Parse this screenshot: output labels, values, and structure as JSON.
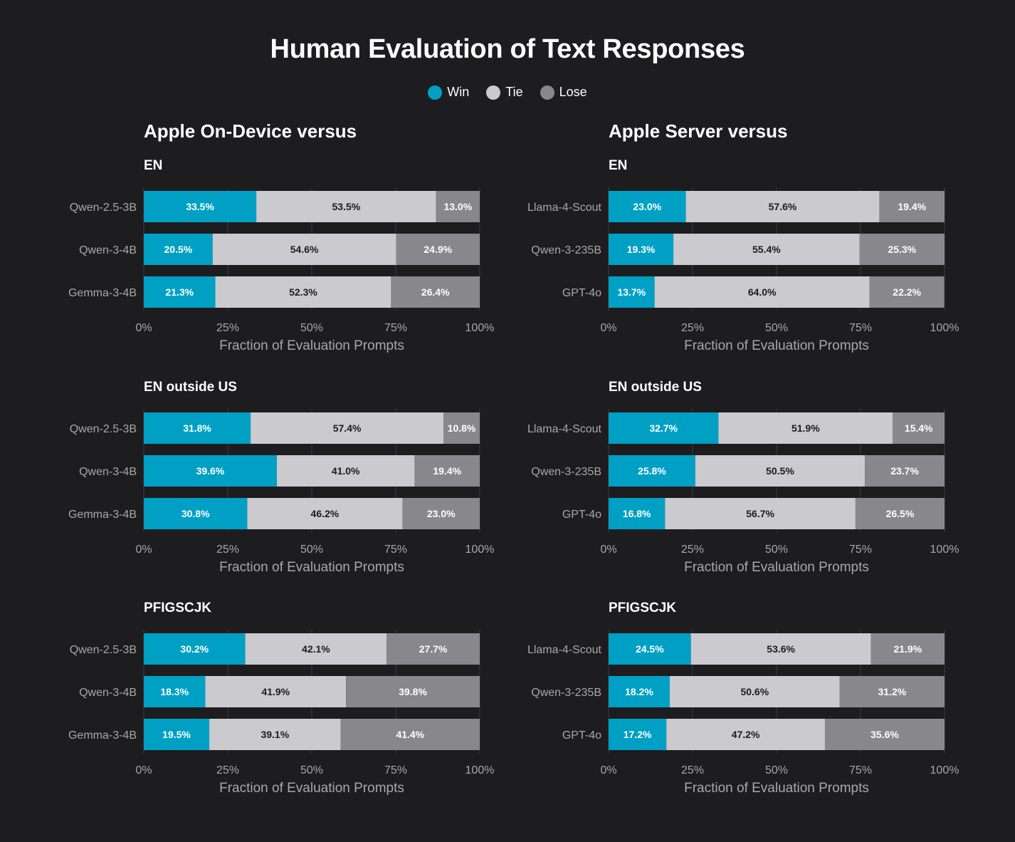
{
  "title": "Human Evaluation of Text Responses",
  "legend": [
    {
      "label": "Win",
      "color": "#00a0c4"
    },
    {
      "label": "Tie",
      "color": "#cacacf"
    },
    {
      "label": "Lose",
      "color": "#88878c"
    }
  ],
  "colors": {
    "win": "#00a0c4",
    "tie": "#cacacf",
    "lose": "#88878c",
    "win_text": "#ffffff",
    "tie_text": "#1d1c1f",
    "lose_text": "#ffffff",
    "grid": "#3e3d42",
    "background": "#1d1c1f"
  },
  "columns": [
    {
      "title": "Apple On-Device versus"
    },
    {
      "title": "Apple Server versus"
    }
  ],
  "chart_data": [
    {
      "type": "bar",
      "stacked": true,
      "orientation": "horizontal",
      "column": 0,
      "row": 0,
      "title": "EN",
      "categories": [
        "Qwen-2.5-3B",
        "Qwen-3-4B",
        "Gemma-3-4B"
      ],
      "series": [
        {
          "name": "Win",
          "values": [
            33.5,
            20.5,
            21.3
          ]
        },
        {
          "name": "Tie",
          "values": [
            53.5,
            54.6,
            52.3
          ]
        },
        {
          "name": "Lose",
          "values": [
            13.0,
            24.9,
            26.4
          ]
        }
      ],
      "value_labels": [
        [
          "33.5%",
          "53.5%",
          "13.0%"
        ],
        [
          "20.5%",
          "54.6%",
          "24.9%"
        ],
        [
          "21.3%",
          "52.3%",
          "26.4%"
        ]
      ],
      "xlim": [
        0,
        100
      ],
      "xticks": [
        "0%",
        "25%",
        "50%",
        "75%",
        "100%"
      ],
      "xlabel": "Fraction of Evaluation Prompts",
      "grid": true
    },
    {
      "type": "bar",
      "stacked": true,
      "orientation": "horizontal",
      "column": 1,
      "row": 0,
      "title": "EN",
      "categories": [
        "Llama-4-Scout",
        "Qwen-3-235B",
        "GPT-4o"
      ],
      "series": [
        {
          "name": "Win",
          "values": [
            23.0,
            19.3,
            13.7
          ]
        },
        {
          "name": "Tie",
          "values": [
            57.6,
            55.4,
            64.0
          ]
        },
        {
          "name": "Lose",
          "values": [
            19.4,
            25.3,
            22.2
          ]
        }
      ],
      "value_labels": [
        [
          "23.0%",
          "57.6%",
          "19.4%"
        ],
        [
          "19.3%",
          "55.4%",
          "25.3%"
        ],
        [
          "13.7%",
          "64.0%",
          "22.2%"
        ]
      ],
      "xlim": [
        0,
        100
      ],
      "xticks": [
        "0%",
        "25%",
        "50%",
        "75%",
        "100%"
      ],
      "xlabel": "Fraction of Evaluation Prompts",
      "grid": true
    },
    {
      "type": "bar",
      "stacked": true,
      "orientation": "horizontal",
      "column": 0,
      "row": 1,
      "title": "EN outside US",
      "categories": [
        "Qwen-2.5-3B",
        "Qwen-3-4B",
        "Gemma-3-4B"
      ],
      "series": [
        {
          "name": "Win",
          "values": [
            31.8,
            39.6,
            30.8
          ]
        },
        {
          "name": "Tie",
          "values": [
            57.4,
            41.0,
            46.2
          ]
        },
        {
          "name": "Lose",
          "values": [
            10.8,
            19.4,
            23.0
          ]
        }
      ],
      "value_labels": [
        [
          "31.8%",
          "57.4%",
          "10.8%"
        ],
        [
          "39.6%",
          "41.0%",
          "19.4%"
        ],
        [
          "30.8%",
          "46.2%",
          "23.0%"
        ]
      ],
      "xlim": [
        0,
        100
      ],
      "xticks": [
        "0%",
        "25%",
        "50%",
        "75%",
        "100%"
      ],
      "xlabel": "Fraction of Evaluation Prompts",
      "grid": true
    },
    {
      "type": "bar",
      "stacked": true,
      "orientation": "horizontal",
      "column": 1,
      "row": 1,
      "title": "EN outside US",
      "categories": [
        "Llama-4-Scout",
        "Qwen-3-235B",
        "GPT-4o"
      ],
      "series": [
        {
          "name": "Win",
          "values": [
            32.7,
            25.8,
            16.8
          ]
        },
        {
          "name": "Tie",
          "values": [
            51.9,
            50.5,
            56.7
          ]
        },
        {
          "name": "Lose",
          "values": [
            15.4,
            23.7,
            26.5
          ]
        }
      ],
      "value_labels": [
        [
          "32.7%",
          "51.9%",
          "15.4%"
        ],
        [
          "25.8%",
          "50.5%",
          "23.7%"
        ],
        [
          "16.8%",
          "56.7%",
          "26.5%"
        ]
      ],
      "xlim": [
        0,
        100
      ],
      "xticks": [
        "0%",
        "25%",
        "50%",
        "75%",
        "100%"
      ],
      "xlabel": "Fraction of Evaluation Prompts",
      "grid": true
    },
    {
      "type": "bar",
      "stacked": true,
      "orientation": "horizontal",
      "column": 0,
      "row": 2,
      "title": "PFIGSCJK",
      "categories": [
        "Qwen-2.5-3B",
        "Qwen-3-4B",
        "Gemma-3-4B"
      ],
      "series": [
        {
          "name": "Win",
          "values": [
            30.2,
            18.3,
            19.5
          ]
        },
        {
          "name": "Tie",
          "values": [
            42.1,
            41.9,
            39.1
          ]
        },
        {
          "name": "Lose",
          "values": [
            27.7,
            39.8,
            41.4
          ]
        }
      ],
      "value_labels": [
        [
          "30.2%",
          "42.1%",
          "27.7%"
        ],
        [
          "18.3%",
          "41.9%",
          "39.8%"
        ],
        [
          "19.5%",
          "39.1%",
          "41.4%"
        ]
      ],
      "xlim": [
        0,
        100
      ],
      "xticks": [
        "0%",
        "25%",
        "50%",
        "75%",
        "100%"
      ],
      "xlabel": "Fraction of Evaluation Prompts",
      "grid": true
    },
    {
      "type": "bar",
      "stacked": true,
      "orientation": "horizontal",
      "column": 1,
      "row": 2,
      "title": "PFIGSCJK",
      "categories": [
        "Llama-4-Scout",
        "Qwen-3-235B",
        "GPT-4o"
      ],
      "series": [
        {
          "name": "Win",
          "values": [
            24.5,
            18.2,
            17.2
          ]
        },
        {
          "name": "Tie",
          "values": [
            53.6,
            50.6,
            47.2
          ]
        },
        {
          "name": "Lose",
          "values": [
            21.9,
            31.2,
            35.6
          ]
        }
      ],
      "value_labels": [
        [
          "24.5%",
          "53.6%",
          "21.9%"
        ],
        [
          "18.2%",
          "50.6%",
          "31.2%"
        ],
        [
          "17.2%",
          "47.2%",
          "35.6%"
        ]
      ],
      "xlim": [
        0,
        100
      ],
      "xticks": [
        "0%",
        "25%",
        "50%",
        "75%",
        "100%"
      ],
      "xlabel": "Fraction of Evaluation Prompts",
      "grid": true
    }
  ]
}
